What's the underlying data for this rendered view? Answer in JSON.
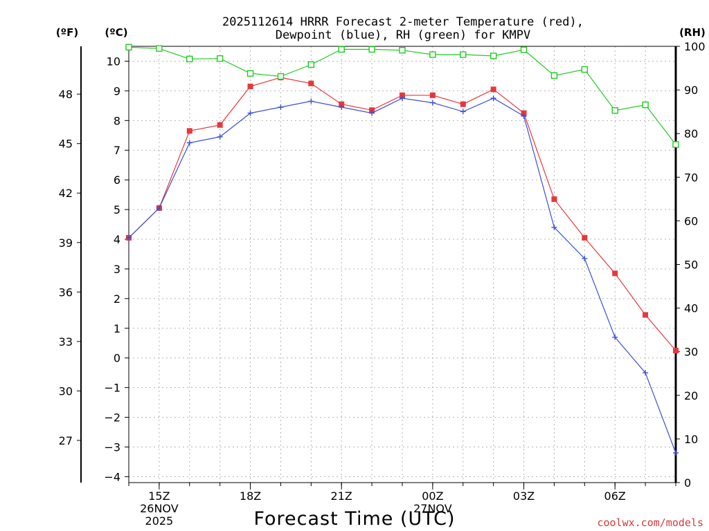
{
  "chart_data": {
    "type": "line",
    "title_line1": "2025112614 HRRR Forecast 2-meter Temperature (red),",
    "title_line2": "Dewpoint (blue), RH (green) for KMPV",
    "left_unit_f": "(ºF)",
    "left_unit_c": "(ºC)",
    "right_unit": "(RH)",
    "xlabel": "Forecast Time (UTC)",
    "watermark": "coolwx.com/models",
    "x_hours": [
      14,
      15,
      16,
      17,
      18,
      19,
      20,
      21,
      22,
      23,
      24,
      25,
      26,
      27,
      28,
      29,
      30,
      31,
      32
    ],
    "xlim": [
      14,
      32
    ],
    "x_ticks": [
      {
        "hour": 15,
        "lines": [
          "15Z",
          "26NOV",
          "2025"
        ]
      },
      {
        "hour": 18,
        "lines": [
          "18Z"
        ]
      },
      {
        "hour": 21,
        "lines": [
          "21Z"
        ]
      },
      {
        "hour": 24,
        "lines": [
          "00Z",
          "27NOV"
        ]
      },
      {
        "hour": 27,
        "lines": [
          "03Z"
        ]
      },
      {
        "hour": 30,
        "lines": [
          "06Z"
        ]
      }
    ],
    "ylim_c": [
      -4.2,
      10.5
    ],
    "yticks_c": [
      -4,
      -3,
      -2,
      -1,
      0,
      1,
      2,
      3,
      4,
      5,
      6,
      7,
      8,
      9,
      10
    ],
    "ytick_labels_c": [
      "−4",
      "−3",
      "−2",
      "−1",
      "0",
      "1",
      "2",
      "3",
      "4",
      "5",
      "6",
      "7",
      "8",
      "9",
      "10"
    ],
    "yticks_f": [
      27,
      30,
      33,
      36,
      39,
      42,
      45,
      48
    ],
    "ytick_labels_f": [
      "27",
      "30",
      "33",
      "36",
      "39",
      "42",
      "45",
      "48"
    ],
    "ylim_rh": [
      0,
      100
    ],
    "yticks_rh": [
      0,
      10,
      20,
      30,
      40,
      50,
      60,
      70,
      80,
      90,
      100
    ],
    "ytick_labels_rh": [
      "0",
      "10",
      "20",
      "30",
      "40",
      "50",
      "60",
      "70",
      "80",
      "90",
      "100"
    ],
    "series": [
      {
        "name": "Temperature",
        "axis": "celsius",
        "color": "#e8373b",
        "marker": "filled-square",
        "values": [
          4.05,
          5.05,
          7.65,
          7.85,
          9.15,
          9.45,
          9.25,
          8.55,
          8.35,
          8.85,
          8.85,
          8.55,
          9.05,
          8.25,
          5.35,
          4.05,
          2.85,
          1.45,
          0.25
        ]
      },
      {
        "name": "Dewpoint",
        "axis": "celsius",
        "color": "#3a4fd6",
        "marker": "plus",
        "values": [
          4.05,
          5.05,
          7.25,
          7.45,
          8.25,
          8.45,
          8.65,
          8.45,
          8.25,
          8.75,
          8.6,
          8.3,
          8.75,
          8.15,
          4.4,
          3.35,
          0.7,
          -0.5,
          -3.2
        ]
      },
      {
        "name": "RH",
        "axis": "rh",
        "color": "#1ecc1e",
        "marker": "open-square",
        "values": [
          99.8,
          99.5,
          97.1,
          97.2,
          93.8,
          93.1,
          95.8,
          99.3,
          99.3,
          99.1,
          98.1,
          98.1,
          97.8,
          99.2,
          93.3,
          94.7,
          85.3,
          86.6,
          77.5
        ]
      }
    ]
  }
}
